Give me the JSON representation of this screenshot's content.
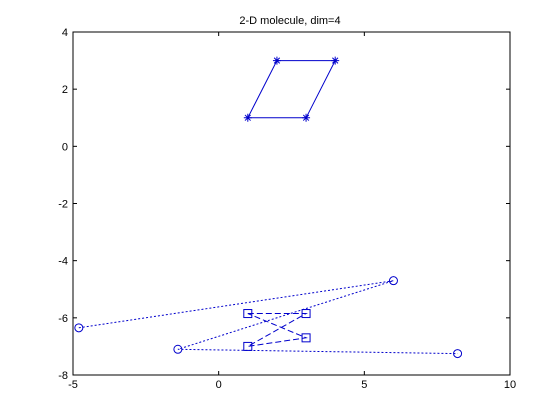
{
  "chart_data": {
    "type": "line",
    "title": "2-D molecule, dim=4",
    "xlabel": "",
    "ylabel": "",
    "xlim": [
      -5,
      10
    ],
    "ylim": [
      -8,
      4
    ],
    "xticks": [
      -5,
      0,
      5,
      10
    ],
    "yticks": [
      -8,
      -6,
      -4,
      -2,
      0,
      2,
      4
    ],
    "grid": false,
    "line_color": "#0000cc",
    "series": [
      {
        "style": "solid",
        "marker": "star",
        "closed": true,
        "x": [
          1,
          2,
          4,
          3
        ],
        "y": [
          1,
          3,
          3,
          1
        ]
      },
      {
        "style": "dotted",
        "marker": "circle",
        "closed": false,
        "x": [
          -4.8,
          6,
          -1.4,
          8.2
        ],
        "y": [
          -6.35,
          -4.7,
          -7.1,
          -7.25
        ]
      },
      {
        "style": "dashed",
        "marker": "square",
        "closed": true,
        "x": [
          1,
          3,
          1,
          3
        ],
        "y": [
          -5.85,
          -5.85,
          -7.0,
          -6.7
        ]
      }
    ]
  }
}
